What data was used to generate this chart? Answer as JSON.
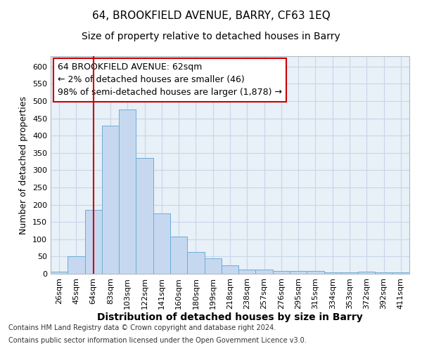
{
  "title": "64, BROOKFIELD AVENUE, BARRY, CF63 1EQ",
  "subtitle": "Size of property relative to detached houses in Barry",
  "xlabel": "Distribution of detached houses by size in Barry",
  "ylabel": "Number of detached properties",
  "categories": [
    "26sqm",
    "45sqm",
    "64sqm",
    "83sqm",
    "103sqm",
    "122sqm",
    "141sqm",
    "160sqm",
    "180sqm",
    "199sqm",
    "218sqm",
    "238sqm",
    "257sqm",
    "276sqm",
    "295sqm",
    "315sqm",
    "334sqm",
    "353sqm",
    "372sqm",
    "392sqm",
    "411sqm"
  ],
  "values": [
    7,
    51,
    185,
    428,
    475,
    336,
    175,
    107,
    62,
    45,
    25,
    12,
    12,
    9,
    9,
    8,
    5,
    5,
    7,
    4,
    4
  ],
  "bar_color": "#c5d8f0",
  "bar_edge_color": "#6baed6",
  "highlight_index": 2,
  "highlight_color": "#cc0000",
  "annotation_lines": [
    "64 BROOKFIELD AVENUE: 62sqm",
    "← 2% of detached houses are smaller (46)",
    "98% of semi-detached houses are larger (1,878) →"
  ],
  "annotation_box_color": "#cc0000",
  "ylim": [
    0,
    630
  ],
  "yticks": [
    0,
    50,
    100,
    150,
    200,
    250,
    300,
    350,
    400,
    450,
    500,
    550,
    600
  ],
  "grid_color": "#c8d4e8",
  "bg_color": "#e8f0f8",
  "footer_line1": "Contains HM Land Registry data © Crown copyright and database right 2024.",
  "footer_line2": "Contains public sector information licensed under the Open Government Licence v3.0.",
  "title_fontsize": 11,
  "subtitle_fontsize": 10,
  "xlabel_fontsize": 10,
  "ylabel_fontsize": 9,
  "tick_fontsize": 8,
  "footer_fontsize": 7,
  "annotation_fontsize": 9
}
